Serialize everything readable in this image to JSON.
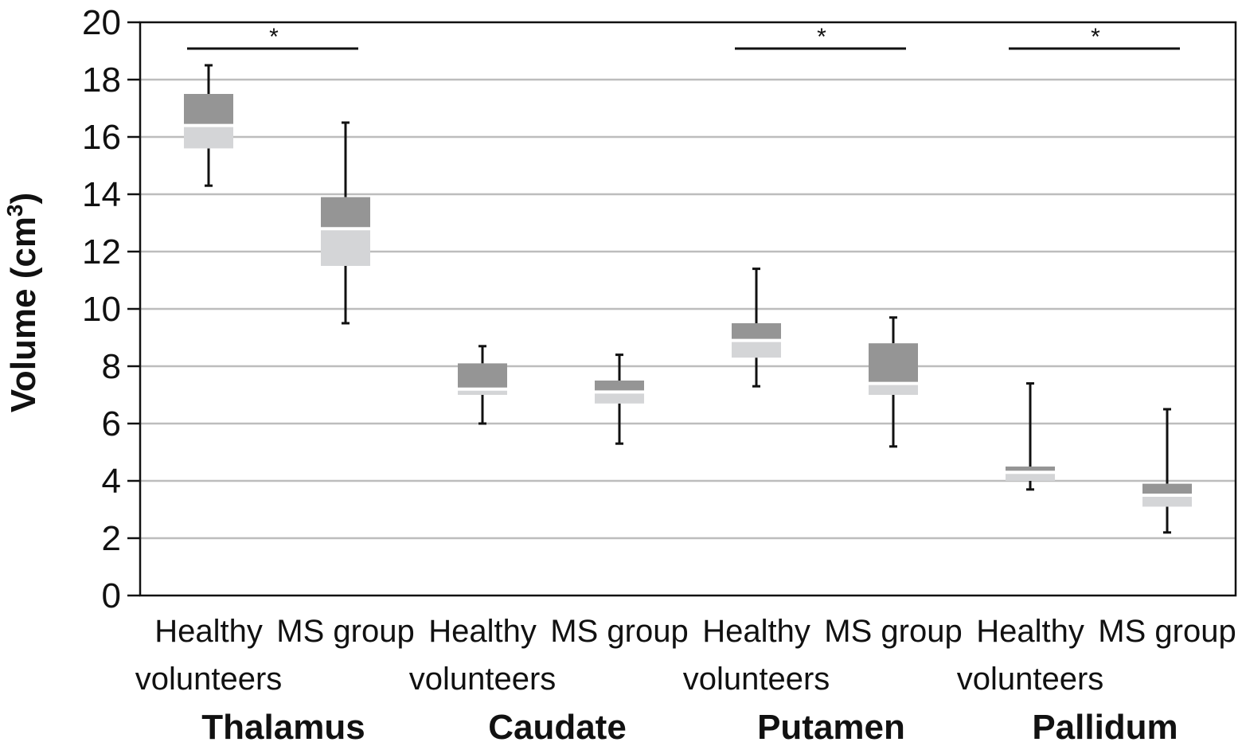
{
  "chart_data": {
    "type": "box",
    "ylabel": "Volume (cm",
    "ylabel_sup": "3",
    "ylabel_close": ")",
    "ylim": [
      0,
      20
    ],
    "yticks": [
      "0",
      "2",
      "4",
      "6",
      "8",
      "10",
      "12",
      "14",
      "16",
      "18",
      "20"
    ],
    "grid": true,
    "colors": {
      "upper_box": "#959595",
      "lower_box": "#d4d5d7",
      "median": "#ffffff",
      "grid": "#bdbdbd"
    },
    "regions": [
      {
        "name": "Thalamus",
        "significance": "*"
      },
      {
        "name": "Caudate",
        "significance": ""
      },
      {
        "name": "Putamen",
        "significance": "*"
      },
      {
        "name": "Pallidum",
        "significance": "*"
      }
    ],
    "groups": [
      {
        "region": "Thalamus",
        "label_line1": "Healthy",
        "label_line2": "volunteers",
        "min": 14.3,
        "q1": 15.6,
        "median": 16.4,
        "q3": 17.5,
        "max": 18.5
      },
      {
        "region": "Thalamus",
        "label_line1": "MS group",
        "label_line2": "",
        "min": 9.5,
        "q1": 11.5,
        "median": 12.8,
        "q3": 13.9,
        "max": 16.5
      },
      {
        "region": "Caudate",
        "label_line1": "Healthy",
        "label_line2": "volunteers",
        "min": 6.0,
        "q1": 7.0,
        "median": 7.2,
        "q3": 8.1,
        "max": 8.7
      },
      {
        "region": "Caudate",
        "label_line1": "MS group",
        "label_line2": "",
        "min": 5.3,
        "q1": 6.7,
        "median": 7.1,
        "q3": 7.5,
        "max": 8.4
      },
      {
        "region": "Putamen",
        "label_line1": "Healthy",
        "label_line2": "volunteers",
        "min": 7.3,
        "q1": 8.3,
        "median": 8.9,
        "q3": 9.5,
        "max": 11.4
      },
      {
        "region": "Putamen",
        "label_line1": "MS group",
        "label_line2": "",
        "min": 5.2,
        "q1": 7.0,
        "median": 7.4,
        "q3": 8.8,
        "max": 9.7
      },
      {
        "region": "Pallidum",
        "label_line1": "Healthy",
        "label_line2": "volunteers",
        "min": 3.7,
        "q1": 4.0,
        "median": 4.3,
        "q3": 4.5,
        "max": 7.4
      },
      {
        "region": "Pallidum",
        "label_line1": "MS group",
        "label_line2": "",
        "min": 2.2,
        "q1": 3.1,
        "median": 3.5,
        "q3": 3.9,
        "max": 6.5
      }
    ]
  }
}
